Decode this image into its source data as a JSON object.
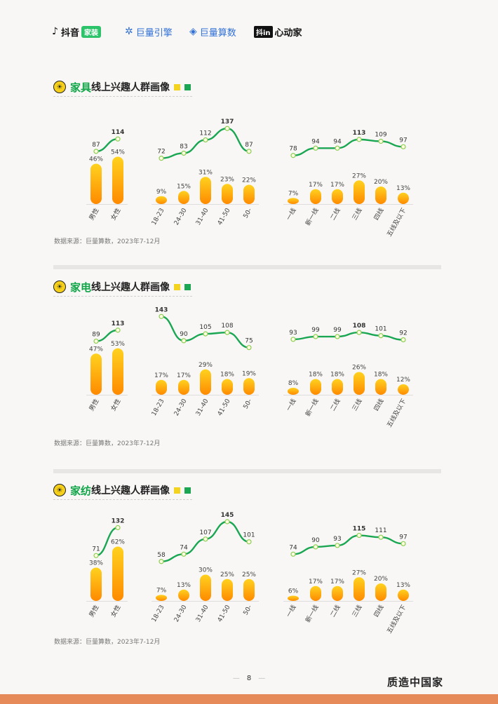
{
  "header": {
    "logos": [
      {
        "name": "douyin-jiazhuang",
        "text": "抖音",
        "badge": "家装"
      },
      {
        "name": "juliang-yinqing",
        "text": "巨量引擎"
      },
      {
        "name": "juliang-suanshu",
        "text": "巨量算数"
      },
      {
        "name": "douyin-xindongjia",
        "badge": "抖in",
        "text": "心动家"
      }
    ]
  },
  "sections": [
    {
      "title_highlight": "家具",
      "title_rest": "线上兴趣人群画像",
      "source": "数据来源：巨量算数，2023年7-12月",
      "chart_data": {
        "type": "bar+line",
        "groups": [
          {
            "categories": [
              "男性",
              "女性"
            ],
            "bar_values": [
              46,
              54
            ],
            "bar_labels": [
              "46%",
              "54%"
            ],
            "line_values": [
              87,
              114
            ]
          },
          {
            "categories": [
              "18-23",
              "24-30",
              "31-40",
              "41-50",
              "50-"
            ],
            "bar_values": [
              9,
              15,
              31,
              23,
              22
            ],
            "bar_labels": [
              "9%",
              "15%",
              "31%",
              "23%",
              "22%"
            ],
            "line_values": [
              72,
              83,
              112,
              137,
              87
            ]
          },
          {
            "categories": [
              "一线",
              "新一线",
              "二线",
              "三线",
              "四线",
              "五线及以下"
            ],
            "bar_values": [
              7,
              17,
              17,
              27,
              20,
              13
            ],
            "bar_labels": [
              "7%",
              "17%",
              "17%",
              "27%",
              "20%",
              "13%"
            ],
            "line_values": [
              78,
              94,
              94,
              113,
              109,
              97
            ]
          }
        ]
      }
    },
    {
      "title_highlight": "家电",
      "title_rest": "线上兴趣人群画像",
      "source": "数据来源：巨量算数，2023年7-12月",
      "chart_data": {
        "type": "bar+line",
        "groups": [
          {
            "categories": [
              "男性",
              "女性"
            ],
            "bar_values": [
              47,
              53
            ],
            "bar_labels": [
              "47%",
              "53%"
            ],
            "line_values": [
              89,
              113
            ]
          },
          {
            "categories": [
              "18-23",
              "24-30",
              "31-40",
              "41-50",
              "50-"
            ],
            "bar_values": [
              17,
              17,
              29,
              18,
              19
            ],
            "bar_labels": [
              "17%",
              "17%",
              "29%",
              "18%",
              "19%"
            ],
            "line_values": [
              143,
              90,
              105,
              108,
              75
            ]
          },
          {
            "categories": [
              "一线",
              "新一线",
              "二线",
              "三线",
              "四线",
              "五线及以下"
            ],
            "bar_values": [
              8,
              18,
              18,
              26,
              18,
              12
            ],
            "bar_labels": [
              "8%",
              "18%",
              "18%",
              "26%",
              "18%",
              "12%"
            ],
            "line_values": [
              93,
              99,
              99,
              108,
              101,
              92
            ]
          }
        ]
      }
    },
    {
      "title_highlight": "家纺",
      "title_rest": "线上兴趣人群画像",
      "source": "数据来源：巨量算数，2023年7-12月",
      "chart_data": {
        "type": "bar+line",
        "groups": [
          {
            "categories": [
              "男性",
              "女性"
            ],
            "bar_values": [
              38,
              62
            ],
            "bar_labels": [
              "38%",
              "62%"
            ],
            "line_values": [
              71,
              132
            ]
          },
          {
            "categories": [
              "18-23",
              "24-30",
              "31-40",
              "41-50",
              "50-"
            ],
            "bar_values": [
              7,
              13,
              30,
              25,
              25
            ],
            "bar_labels": [
              "7%",
              "13%",
              "30%",
              "25%",
              "25%"
            ],
            "line_values": [
              58,
              74,
              107,
              145,
              101
            ]
          },
          {
            "categories": [
              "一线",
              "新一线",
              "二线",
              "三线",
              "四线",
              "五线及以下"
            ],
            "bar_values": [
              6,
              17,
              17,
              27,
              20,
              13
            ],
            "bar_labels": [
              "6%",
              "17%",
              "17%",
              "27%",
              "20%",
              "13%"
            ],
            "line_values": [
              74,
              90,
              93,
              115,
              111,
              97
            ]
          }
        ]
      }
    }
  ],
  "footer": {
    "page_number": "8",
    "brand": "质造中国家"
  },
  "colors": {
    "bar_top": "#ffd21f",
    "bar_bottom": "#ff8a00",
    "line": "#1aa653",
    "marker_fill": "#fffbe0",
    "marker_stroke": "#8ccf55",
    "accent_green": "#10a548",
    "footer_bar": "#e58a58"
  }
}
